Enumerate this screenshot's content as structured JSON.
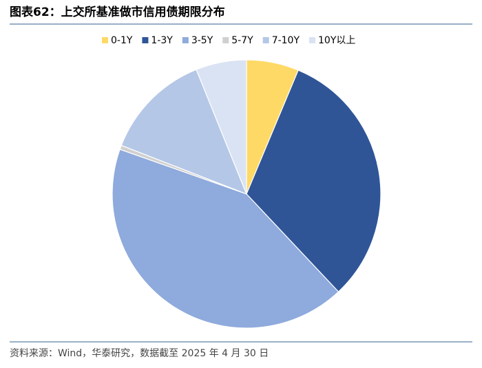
{
  "chart_data": {
    "type": "pie",
    "title": "图表62：上交所基准做市信用债期限分布",
    "source": "资料来源：Wind，华泰研究，数据截至 2025 年 4 月 30 日",
    "categories": [
      "0-1Y",
      "1-3Y",
      "3-5Y",
      "5-7Y",
      "7-10Y",
      "10Y以上"
    ],
    "values": [
      6.3,
      31.7,
      42.4,
      0.5,
      13.0,
      6.1
    ],
    "colors": [
      "#FFD966",
      "#2F5597",
      "#8FAADC",
      "#D0D0D0",
      "#B4C7E7",
      "#DAE3F3"
    ],
    "legend": "top"
  }
}
